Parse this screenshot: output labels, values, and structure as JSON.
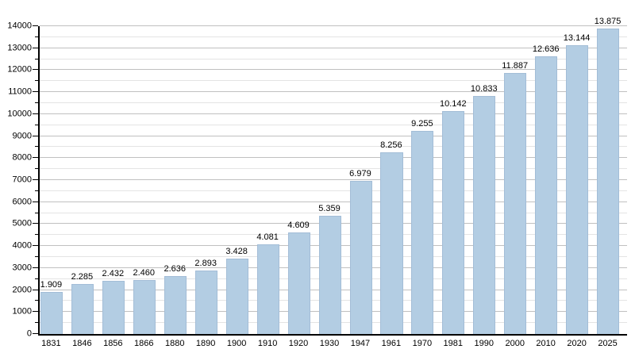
{
  "chart_data": {
    "type": "bar",
    "categories": [
      "1831",
      "1846",
      "1856",
      "1866",
      "1880",
      "1890",
      "1900",
      "1910",
      "1920",
      "1930",
      "1947",
      "1961",
      "1970",
      "1981",
      "1990",
      "2000",
      "2010",
      "2020",
      "2025"
    ],
    "values": [
      1909,
      2285,
      2432,
      2460,
      2636,
      2893,
      3428,
      4081,
      4609,
      5359,
      6979,
      8256,
      9255,
      10142,
      10833,
      11887,
      12636,
      13144,
      13875
    ],
    "value_labels": [
      "1.909",
      "2.285",
      "2.432",
      "2.460",
      "2.636",
      "2.893",
      "3.428",
      "4.081",
      "4.609",
      "5.359",
      "6.979",
      "8.256",
      "9.255",
      "10.142",
      "10.833",
      "11.887",
      "12.636",
      "13.144",
      "13.875"
    ],
    "y_tick_labels": [
      "0",
      "1000",
      "2000",
      "3000",
      "4000",
      "5000",
      "6000",
      "7000",
      "8000",
      "9000",
      "10000",
      "11000",
      "12000",
      "13000",
      "14000"
    ],
    "ylim": [
      0,
      14000
    ],
    "y_major_step": 1000,
    "y_minor_step": 500,
    "grid": "on",
    "legend": "none",
    "xlabel": "",
    "ylabel": "",
    "colors": {
      "background": "#ffffff",
      "bar_fill": "#b3cde3",
      "bar_border": "#a3bdd7",
      "grid_major": "#c0c0c0",
      "grid_minor": "#e4e4e4",
      "axis": "#000000",
      "text": "#000000"
    }
  }
}
